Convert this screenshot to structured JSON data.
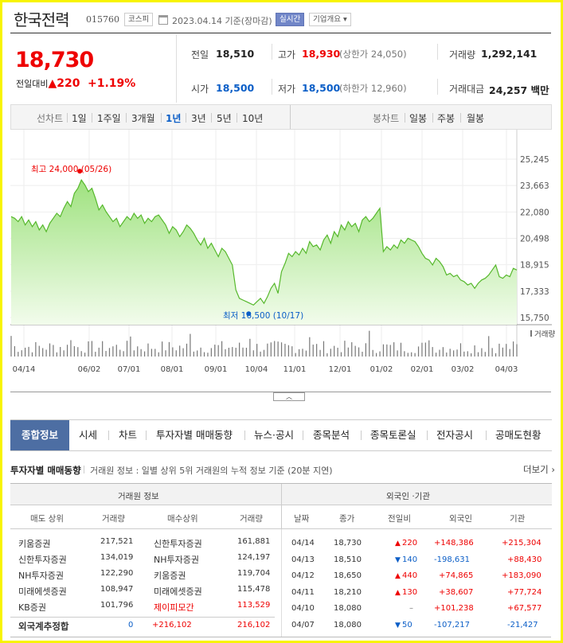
{
  "header": {
    "name": "한국전력",
    "code": "015760",
    "market": "코스피",
    "date": "2023.04.14 기준(장마감)",
    "realtime": "실시간",
    "company_info": "기업개요 ▾"
  },
  "quote": {
    "price": "18,730",
    "change_label": "전일대비",
    "change_arrow": "▲",
    "change": "220",
    "change_pct": "+1.19%",
    "prev_label": "전일",
    "prev": "18,510",
    "high_label": "고가",
    "high": "18,930",
    "upper_limit": "(상한가 24,050)",
    "volume_label": "거래량",
    "volume": "1,292,141",
    "open_label": "시가",
    "open": "18,500",
    "low_label": "저가",
    "low": "18,500",
    "lower_limit": "(하한가 12,960)",
    "amount_label": "거래대금",
    "amount": "24,257 백만"
  },
  "period_bar": {
    "label": "선차트",
    "periods": [
      "1일",
      "1주일",
      "3개월",
      "1년",
      "3년",
      "5년",
      "10년"
    ],
    "selected": "1년",
    "candle_label": "봉차트",
    "candles": [
      "일봉",
      "주봉",
      "월봉"
    ]
  },
  "chart_data": {
    "type": "area",
    "y_ticks": [
      "25,245",
      "23,663",
      "22,080",
      "20,498",
      "18,915",
      "17,333",
      "15,750"
    ],
    "ylim": [
      15750,
      25245
    ],
    "x_ticks": [
      "04/14",
      "06/02",
      "07/01",
      "08/01",
      "09/01",
      "10/04",
      "11/01",
      "12/01",
      "01/02",
      "02/01",
      "03/02",
      "04/03"
    ],
    "high_annotation": "최고 24,000 (05/26)",
    "low_annotation": "최저 16,500 (10/17)",
    "volume_label": "거래량",
    "values": [
      21800,
      21700,
      21500,
      21800,
      21300,
      21600,
      21200,
      21500,
      21000,
      21300,
      20900,
      21400,
      21700,
      22000,
      21800,
      22300,
      22700,
      22400,
      23200,
      23500,
      24000,
      23700,
      23300,
      23500,
      22900,
      22200,
      22500,
      22100,
      21800,
      21500,
      21700,
      21200,
      21500,
      21800,
      21600,
      22000,
      21700,
      21900,
      21400,
      21700,
      21500,
      21800,
      21900,
      21600,
      21300,
      20800,
      21200,
      21000,
      20600,
      20900,
      21300,
      21100,
      20800,
      20400,
      20100,
      20500,
      19900,
      20200,
      19800,
      19400,
      19900,
      19700,
      19300,
      18900,
      17400,
      16900,
      16800,
      16700,
      16600,
      16500,
      16700,
      16900,
      16600,
      17000,
      17500,
      17800,
      17200,
      18500,
      19000,
      19600,
      19400,
      19700,
      19500,
      19900,
      19600,
      20300,
      20000,
      20100,
      19800,
      20400,
      20700,
      20200,
      20900,
      20600,
      21300,
      21000,
      21500,
      21200,
      21400,
      20900,
      21600,
      21800,
      21500,
      21700,
      22000,
      22300,
      19700,
      20000,
      19800,
      20100,
      19900,
      20400,
      20200,
      20500,
      20400,
      20300,
      20000,
      19600,
      19300,
      19200,
      18900,
      19300,
      19100,
      18800,
      18300,
      18400,
      18200,
      18300,
      18000,
      17900,
      17700,
      17800,
      17500,
      17800,
      18000,
      18100,
      18300,
      18600,
      18900,
      18200,
      18100,
      18300,
      18200,
      18700,
      18600
    ]
  },
  "tabs": [
    "종합정보",
    "시세",
    "차트",
    "투자자별 매매동향",
    "뉴스·공시",
    "종목분석",
    "종목토론실",
    "전자공시",
    "공매도현황"
  ],
  "investor": {
    "title": "투자자별 매매동향",
    "desc": "거래원 정보 : 일별 상위 5위 거래원의 누적 정보 기준 (20분 지연)",
    "more": "더보기 ›",
    "broker_head": "거래원 정보",
    "foreign_head": "외국인 ·기관",
    "cols_left": [
      "매도 상위",
      "거래량",
      "매수상위",
      "거래량"
    ],
    "cols_right": [
      "날짜",
      "종가",
      "전일비",
      "외국인",
      "기관"
    ],
    "brokers": [
      {
        "sell": "키움증권",
        "sell_vol": "217,521",
        "buy": "신한투자증권",
        "buy_vol": "161,881",
        "buy_red": false
      },
      {
        "sell": "신한투자증권",
        "sell_vol": "134,019",
        "buy": "NH투자증권",
        "buy_vol": "124,197",
        "buy_red": false
      },
      {
        "sell": "NH투자증권",
        "sell_vol": "122,290",
        "buy": "키움증권",
        "buy_vol": "119,704",
        "buy_red": false
      },
      {
        "sell": "미래에셋증권",
        "sell_vol": "108,947",
        "buy": "미래에셋증권",
        "buy_vol": "115,478",
        "buy_red": false
      },
      {
        "sell": "KB증권",
        "sell_vol": "101,796",
        "buy": "제이피모간",
        "buy_vol": "113,529",
        "buy_red": true
      }
    ],
    "foreign_total": {
      "label": "외국계추정합",
      "sell_vol": "0",
      "buy": "+216,102",
      "buy_vol": "216,102"
    },
    "daily": [
      {
        "date": "04/14",
        "close": "18,730",
        "dir": "up",
        "diff": "220",
        "foreign": "+148,386",
        "inst": "+215,304"
      },
      {
        "date": "04/13",
        "close": "18,510",
        "dir": "down",
        "diff": "140",
        "foreign": "-198,631",
        "inst": "+88,430"
      },
      {
        "date": "04/12",
        "close": "18,650",
        "dir": "up",
        "diff": "440",
        "foreign": "+74,865",
        "inst": "+183,090"
      },
      {
        "date": "04/11",
        "close": "18,210",
        "dir": "up",
        "diff": "130",
        "foreign": "+38,607",
        "inst": "+77,724"
      },
      {
        "date": "04/10",
        "close": "18,080",
        "dir": "none",
        "diff": "–",
        "foreign": "+101,238",
        "inst": "+67,577"
      },
      {
        "date": "04/07",
        "close": "18,080",
        "dir": "down",
        "diff": "50",
        "foreign": "-107,217",
        "inst": "-21,427"
      }
    ]
  }
}
